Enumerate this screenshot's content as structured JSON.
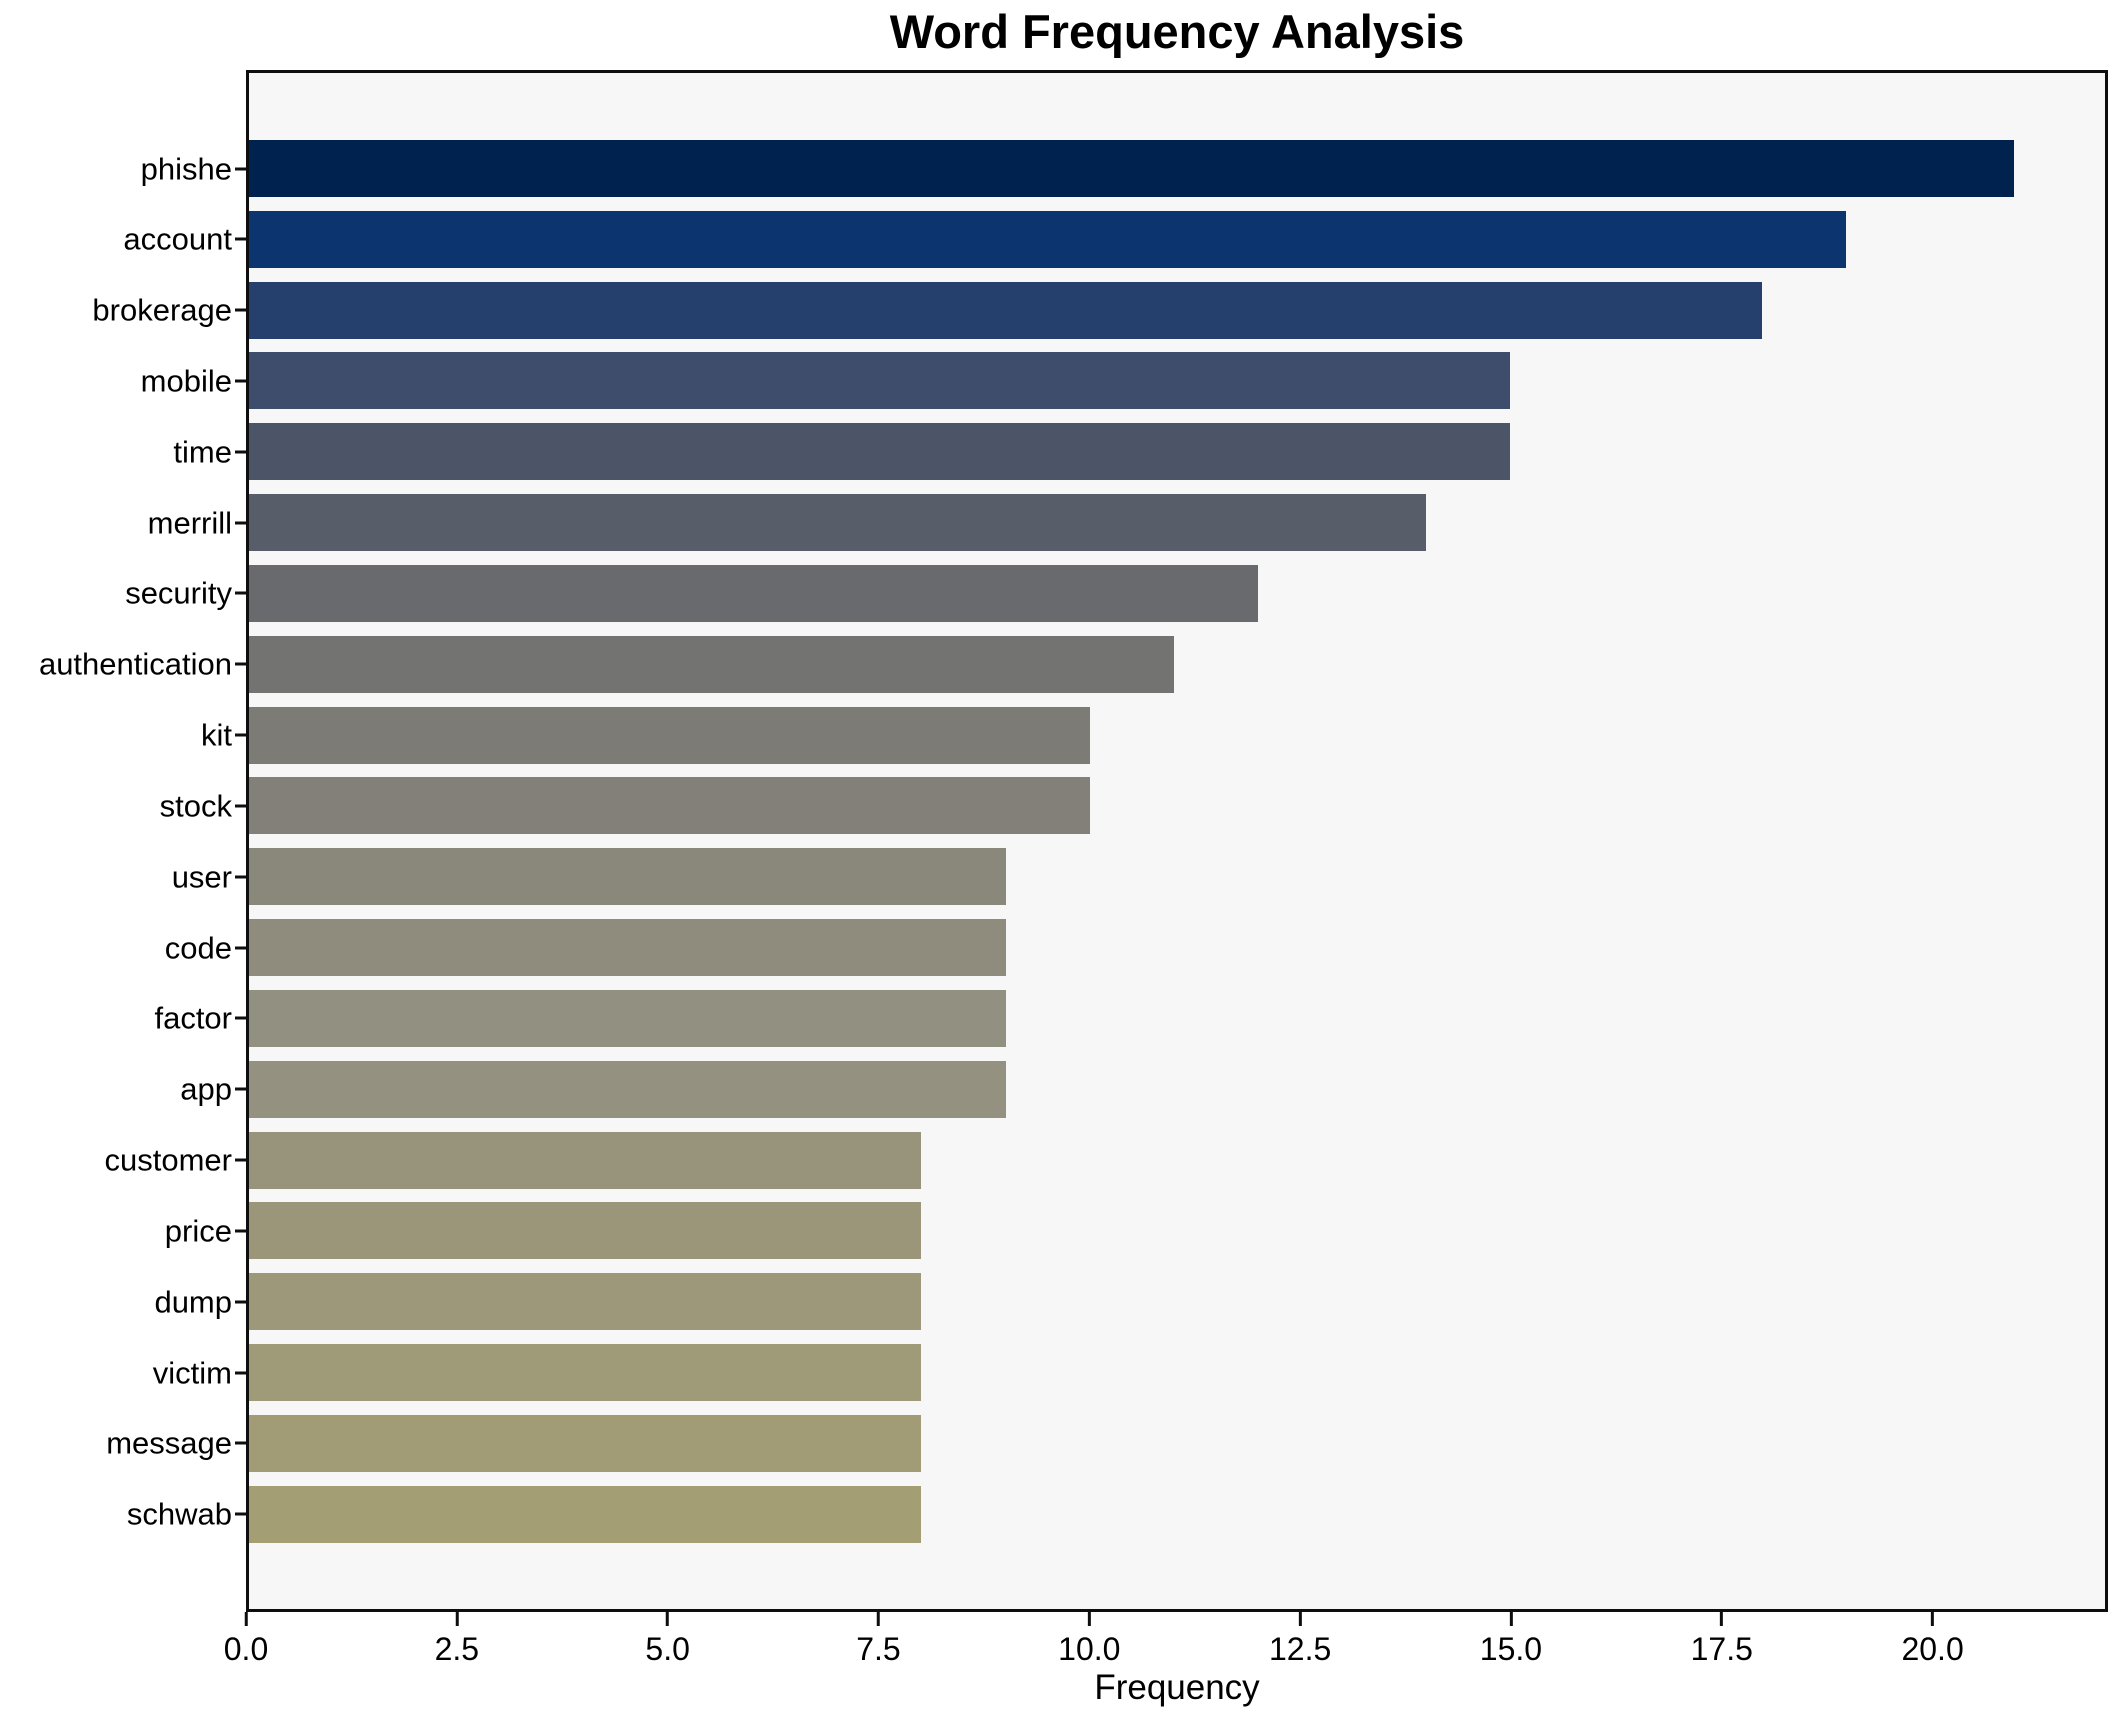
{
  "figure": {
    "background": "#ffffff",
    "plot_background": "#f7f7f8",
    "spine_color": "#0e0e0e",
    "colormap": "cividis"
  },
  "chart_data": {
    "type": "bar",
    "orientation": "horizontal",
    "title": "Word Frequency Analysis",
    "xlabel": "Frequency",
    "ylabel": "",
    "grid": false,
    "legend_position": "none",
    "categories": [
      "phishe",
      "account",
      "brokerage",
      "mobile",
      "time",
      "merrill",
      "security",
      "authentication",
      "kit",
      "stock",
      "user",
      "code",
      "factor",
      "app",
      "customer",
      "price",
      "dump",
      "victim",
      "message",
      "schwab"
    ],
    "values": [
      21,
      19,
      18,
      15,
      15,
      14,
      12,
      11,
      10,
      10,
      9,
      9,
      9,
      9,
      8,
      8,
      8,
      8,
      8,
      8
    ],
    "bar_colors": [
      "#00224e",
      "#0c3570",
      "#26406d",
      "#3e4d6b",
      "#4c5568",
      "#585e69",
      "#696a6d",
      "#737371",
      "#7c7b75",
      "#828078",
      "#8a877b",
      "#8f8c7e",
      "#929080",
      "#949180",
      "#98947c",
      "#9b967a",
      "#9d9879",
      "#9f9a77",
      "#a29c76",
      "#a49e75"
    ],
    "xlim": [
      0,
      22.08
    ],
    "xtick_values": [
      0,
      2.5,
      5,
      7.5,
      10,
      12.5,
      15,
      17.5,
      20
    ],
    "xtick_labels": [
      "0.0",
      "2.5",
      "5.0",
      "7.5",
      "10.0",
      "12.5",
      "15.0",
      "17.5",
      "20.0"
    ]
  }
}
